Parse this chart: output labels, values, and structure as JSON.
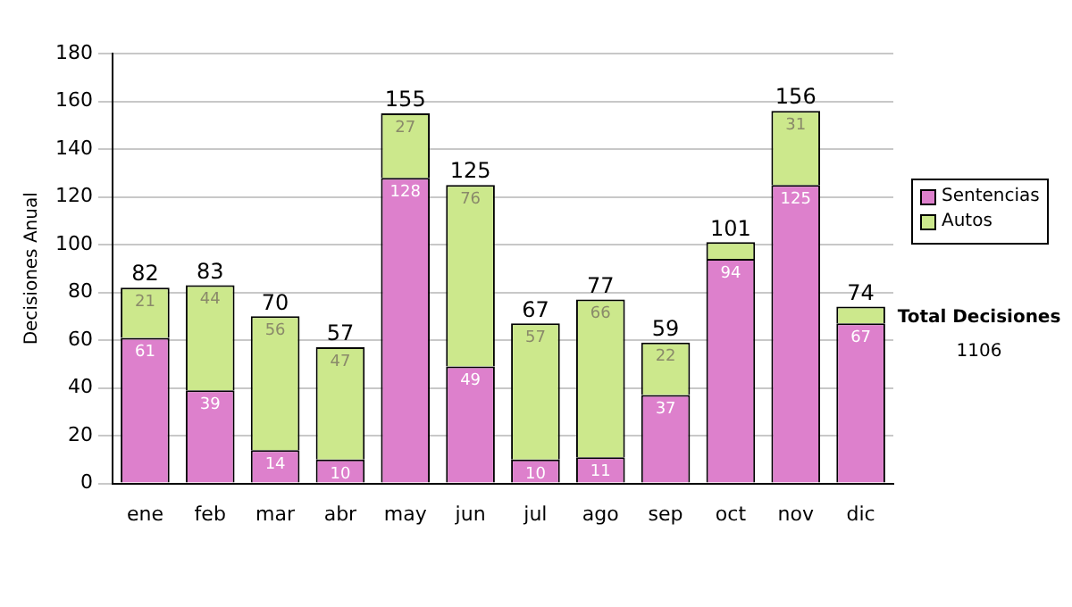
{
  "chart_data": {
    "type": "bar",
    "stacked": true,
    "ylabel": "Decisiones Anual",
    "categories": [
      "ene",
      "feb",
      "mar",
      "abr",
      "may",
      "jun",
      "jul",
      "ago",
      "sep",
      "oct",
      "nov",
      "dic"
    ],
    "series": [
      {
        "name": "Sentencias",
        "color": "#dd80cc",
        "values": [
          61,
          39,
          14,
          10,
          128,
          49,
          10,
          11,
          37,
          94,
          125,
          67
        ],
        "value_labels": [
          "61",
          "39",
          "14",
          "10",
          "128",
          "49",
          "10",
          "11",
          "37",
          "94",
          "125",
          "67"
        ]
      },
      {
        "name": "Autos",
        "color": "#cce88c",
        "values": [
          21,
          44,
          56,
          47,
          27,
          76,
          57,
          66,
          22,
          7,
          31,
          7
        ],
        "value_labels": [
          "21",
          "44",
          "56",
          "47",
          "27",
          "76",
          "57",
          "66",
          "22",
          null,
          "31",
          null
        ]
      }
    ],
    "totals": [
      "82",
      "83",
      "70",
      "57",
      "155",
      "125",
      "67",
      "77",
      "59",
      "101",
      "156",
      "74"
    ],
    "ylim": [
      0,
      180
    ],
    "yticks": [
      0,
      20,
      40,
      60,
      80,
      100,
      120,
      140,
      160,
      180
    ],
    "grid": "y",
    "legend": "right",
    "annotations": [
      "Total Decisiones",
      "1106"
    ]
  }
}
